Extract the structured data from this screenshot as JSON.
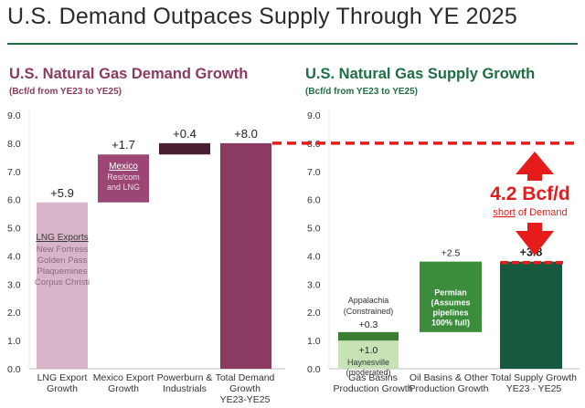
{
  "header": {
    "title": "U.S. Demand Outpaces Supply Through YE 2025"
  },
  "colors": {
    "demand_title": "#8b3a62",
    "supply_title": "#1f6e44",
    "lng": "#d9b5c9",
    "mexico": "#9b4674",
    "powerburn": "#4a1f33",
    "total_demand": "#8b3a62",
    "gas_basins": "#c7e3b6",
    "gas_basins_top": "#3b7d33",
    "oil_basins": "#3b8c3b",
    "total_supply": "#17593e",
    "gap_line": "#e61c1c",
    "axis_text": "#333333"
  },
  "chart_data": [
    {
      "type": "bar",
      "subtype": "waterfall",
      "title": "U.S. Natural Gas Demand Growth",
      "subtitle": "(Bcf/d from YE23 to YE25)",
      "ylim": [
        0,
        9
      ],
      "yticks": [
        "0.0",
        "1.0",
        "2.0",
        "3.0",
        "4.0",
        "5.0",
        "6.0",
        "7.0",
        "8.0",
        "9.0"
      ],
      "categories": [
        [
          "LNG Export",
          "Growth"
        ],
        [
          "Mexico Export",
          "Growth"
        ],
        [
          "Powerburn &",
          "Industrials"
        ],
        [
          "Total Demand",
          "Growth",
          "YE23-YE25"
        ]
      ],
      "bars": [
        {
          "base": 0,
          "value": 5.9,
          "label": "+5.9",
          "inner_title": "LNG Exports",
          "inner_lines": [
            "New Fortress",
            "Golden Pass",
            "Plaquemines",
            "Corpus Christi"
          ]
        },
        {
          "base": 5.9,
          "value": 1.7,
          "label": "+1.7",
          "inner_title": "Mexico",
          "inner_lines": [
            "Res/com",
            "and LNG"
          ]
        },
        {
          "base": 7.6,
          "value": 0.4,
          "label": "+0.4",
          "inner_title": "",
          "inner_lines": []
        },
        {
          "base": 0,
          "value": 8.0,
          "label": "+8.0",
          "inner_title": "",
          "inner_lines": []
        }
      ]
    },
    {
      "type": "bar",
      "subtype": "waterfall",
      "title": "U.S. Natural Gas Supply Growth",
      "subtitle": "(Bcf/d from YE23 to YE25)",
      "ylim": [
        0,
        9
      ],
      "yticks": [
        "0.0",
        "1.0",
        "2.0",
        "3.0",
        "4.0",
        "5.0",
        "6.0",
        "7.0",
        "8.0",
        "9.0"
      ],
      "categories": [
        [
          "Gas Basins",
          "Production Growth"
        ],
        [
          "Oil Basins & Other",
          "Production Growth"
        ],
        [
          "Total Supply Growth",
          "YE23 - YE25"
        ]
      ],
      "segments": [
        {
          "base": 0,
          "value": 1.0,
          "label": "+1.0",
          "inner_lines": [
            "Haynesville",
            "(moderated)"
          ]
        },
        {
          "base": 1.0,
          "value": 0.3,
          "label": "+0.3",
          "above_lines": [
            "Appalachia",
            "(Constrained)"
          ]
        },
        {
          "base": 1.3,
          "value": 2.5,
          "label": "+2.5",
          "inner_lines": [
            "Permian",
            "(Assumes",
            "pipelines",
            "100% full)"
          ]
        },
        {
          "base": 0,
          "value": 3.8,
          "label": "+3.8"
        }
      ],
      "gap": {
        "demand_level": 8.0,
        "supply_level": 3.8,
        "amount": "4.2 Bcf/d",
        "caption_link": "short",
        "caption_rest": " of Demand"
      }
    }
  ]
}
